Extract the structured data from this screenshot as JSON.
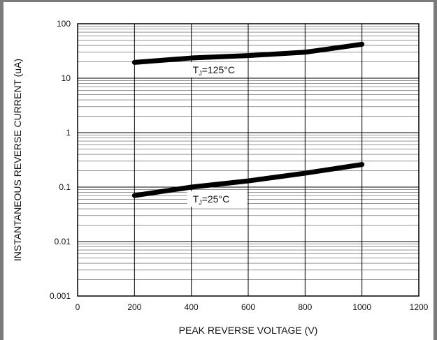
{
  "chart_data": {
    "type": "line",
    "xlabel": "PEAK REVERSE VOLTAGE (V)",
    "ylabel": "INSTANTANEOUS REVERSE CURRENT (uA)",
    "xlim": [
      0,
      1200
    ],
    "ylim": [
      0.001,
      100
    ],
    "yscale": "log",
    "grid": true,
    "x_ticks": [
      "0",
      "200",
      "400",
      "600",
      "800",
      "1000",
      "1200"
    ],
    "y_ticks": [
      "0.001",
      "0.01",
      "0.1",
      "1",
      "10",
      "100"
    ],
    "series": [
      {
        "name": "TJ=125°C",
        "label_main": "T",
        "label_sub": "J",
        "label_rest": "=125°C",
        "x": [
          200,
          400,
          600,
          800,
          1000
        ],
        "values": [
          19.5,
          23.5,
          26,
          30,
          42
        ]
      },
      {
        "name": "TJ=25°C",
        "label_main": "T",
        "label_sub": "J",
        "label_rest": "=25°C",
        "x": [
          200,
          400,
          600,
          800,
          1000
        ],
        "values": [
          0.07,
          0.1,
          0.13,
          0.18,
          0.26
        ]
      }
    ]
  }
}
